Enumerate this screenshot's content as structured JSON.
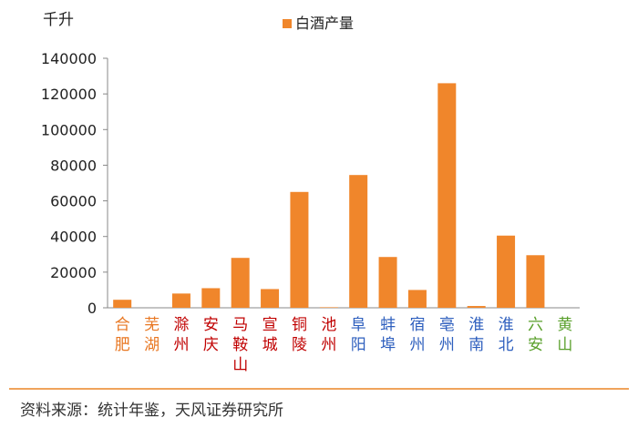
{
  "chart_data": {
    "type": "bar",
    "ylabel": "千升",
    "legend": "白酒产量",
    "legend_position": "top-center",
    "grid": false,
    "ylim": [
      0,
      140000
    ],
    "yticks": [
      "0",
      "20000",
      "40000",
      "60000",
      "80000",
      "100000",
      "120000",
      "140000"
    ],
    "categories": [
      "合肥",
      "芜湖",
      "滁州",
      "安庆",
      "马鞍山",
      "宣城",
      "铜陵",
      "池州",
      "阜阳",
      "蚌埠",
      "宿州",
      "亳州",
      "淮南",
      "淮北",
      "六安",
      "黄山"
    ],
    "category_colors": [
      "#e87722",
      "#e87722",
      "#c00000",
      "#c00000",
      "#c00000",
      "#c00000",
      "#c00000",
      "#c00000",
      "#2e5fbe",
      "#2e5fbe",
      "#2e5fbe",
      "#2e5fbe",
      "#2e5fbe",
      "#2e5fbe",
      "#5aa02c",
      "#5aa02c"
    ],
    "values": [
      4500,
      0,
      8000,
      11000,
      28000,
      10500,
      65000,
      300,
      74500,
      28500,
      10000,
      126000,
      1000,
      40500,
      29500,
      0
    ],
    "bar_color": "#f0862b"
  },
  "source": "资料来源：统计年鉴，天风证券研究所"
}
